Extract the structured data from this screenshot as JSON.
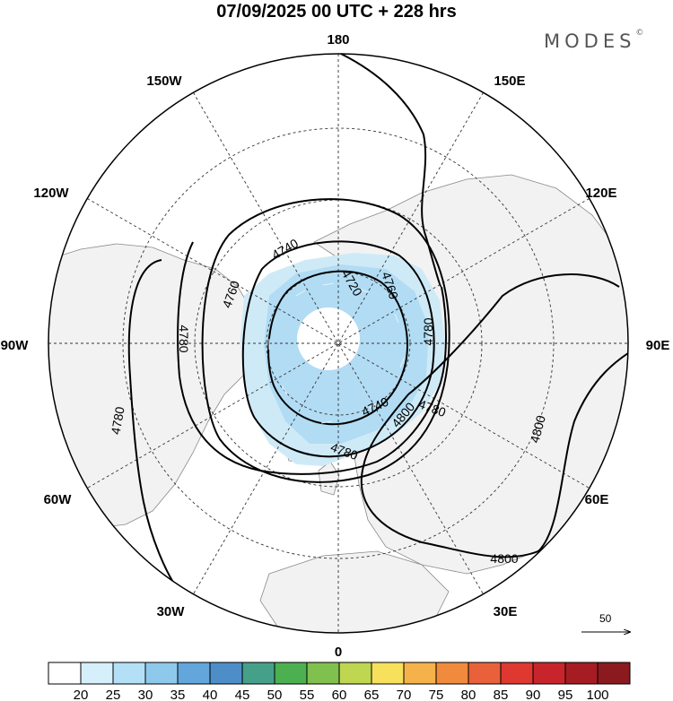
{
  "title": "07/09/2025  00 UTC  + 228 hrs",
  "brand": {
    "name": "MODES",
    "mark": "©"
  },
  "map": {
    "projection": "north-polar-stereographic",
    "longitude_labels": [
      "180",
      "150E",
      "120E",
      "90E",
      "60E",
      "30E",
      "0",
      "30W",
      "60W",
      "90W",
      "120W",
      "150W"
    ],
    "contour_labels": [
      "4740",
      "4720",
      "4760",
      "4760",
      "4780",
      "4780",
      "4780",
      "4780",
      "4740",
      "4780",
      "4800",
      "4800",
      "4800"
    ],
    "shading_color": "#a9d8f2"
  },
  "vector_scale": {
    "value": "50"
  },
  "colorbar": {
    "labels": [
      "20",
      "25",
      "30",
      "35",
      "40",
      "45",
      "50",
      "55",
      "60",
      "65",
      "70",
      "75",
      "80",
      "85",
      "90",
      "95",
      "100"
    ],
    "colors": [
      "#ffffff",
      "#d6f0fb",
      "#b3e0f6",
      "#8ec9ec",
      "#63a6dc",
      "#4d8ec8",
      "#45a08a",
      "#4cb050",
      "#80c04f",
      "#bfd651",
      "#f7e05c",
      "#f6b24a",
      "#f08a3d",
      "#e8613a",
      "#de3831",
      "#c7252b",
      "#a51d22",
      "#8b1a1e"
    ]
  }
}
